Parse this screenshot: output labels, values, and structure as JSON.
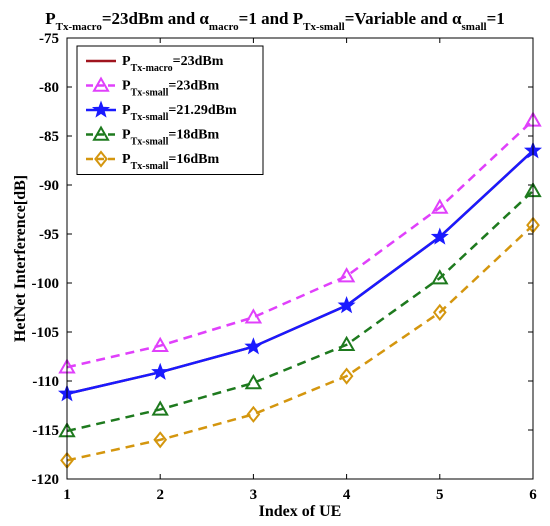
{
  "chart_data": {
    "type": "line",
    "title": "P_Tx-macro=23dBm and α_macro=1 and P_Tx-small=Variable and α_small=1",
    "title_parts": [
      {
        "text": "P",
        "sub": false
      },
      {
        "text": "Tx-macro",
        "sub": true
      },
      {
        "text": "=23dBm and ",
        "sub": false
      },
      {
        "text": "α",
        "sub": false
      },
      {
        "text": "macro",
        "sub": true
      },
      {
        "text": "=1 and P",
        "sub": false
      },
      {
        "text": "Tx-small",
        "sub": true
      },
      {
        "text": "=Variable and ",
        "sub": false
      },
      {
        "text": "α",
        "sub": false
      },
      {
        "text": "small",
        "sub": true
      },
      {
        "text": "=1",
        "sub": false
      }
    ],
    "xlabel": "Index of UE",
    "ylabel": "HetNet Interference[dB]",
    "xlim": [
      1,
      6
    ],
    "ylim": [
      -120,
      -75
    ],
    "xticks": [
      1,
      2,
      3,
      4,
      5,
      6
    ],
    "yticks": [
      -75,
      -80,
      -85,
      -90,
      -95,
      -100,
      -105,
      -110,
      -115,
      -120
    ],
    "grid": false,
    "legend_position": "top-left",
    "x": [
      1,
      2,
      3,
      4,
      5,
      6
    ],
    "series": [
      {
        "name": "P_Tx-macro=23dBm",
        "sub": "Tx-macro",
        "suffix": "=23dBm",
        "color": "#a0141e",
        "dash": "none",
        "marker": "none",
        "values": [
          -111.3,
          -109.1,
          -106.5,
          -102.3,
          -95.3,
          -86.5
        ]
      },
      {
        "name": "P_Tx-small=23dBm",
        "sub": "Tx-small",
        "suffix": "=23dBm",
        "color": "#e040fb",
        "dash": "dashed",
        "marker": "triangle",
        "values": [
          -108.6,
          -106.4,
          -103.5,
          -99.3,
          -92.3,
          -83.4
        ]
      },
      {
        "name": "P_Tx-small=21.29dBm",
        "sub": "Tx-small",
        "suffix": "=21.29dBm",
        "color": "#1a1aff",
        "dash": "none",
        "marker": "star",
        "values": [
          -111.3,
          -109.1,
          -106.5,
          -102.3,
          -95.3,
          -86.5
        ]
      },
      {
        "name": "P_Tx-small=18dBm",
        "sub": "Tx-small",
        "suffix": "=18dBm",
        "color": "#1e7a1e",
        "dash": "dashed",
        "marker": "triangle",
        "values": [
          -115.1,
          -112.9,
          -110.2,
          -106.3,
          -99.5,
          -90.6
        ]
      },
      {
        "name": "P_Tx-small=16dBm",
        "sub": "Tx-small",
        "suffix": "=16dBm",
        "color": "#d4960e",
        "dash": "dashed",
        "marker": "diamond",
        "values": [
          -118.1,
          -116.0,
          -113.4,
          -109.5,
          -103.0,
          -94.1
        ]
      }
    ]
  }
}
